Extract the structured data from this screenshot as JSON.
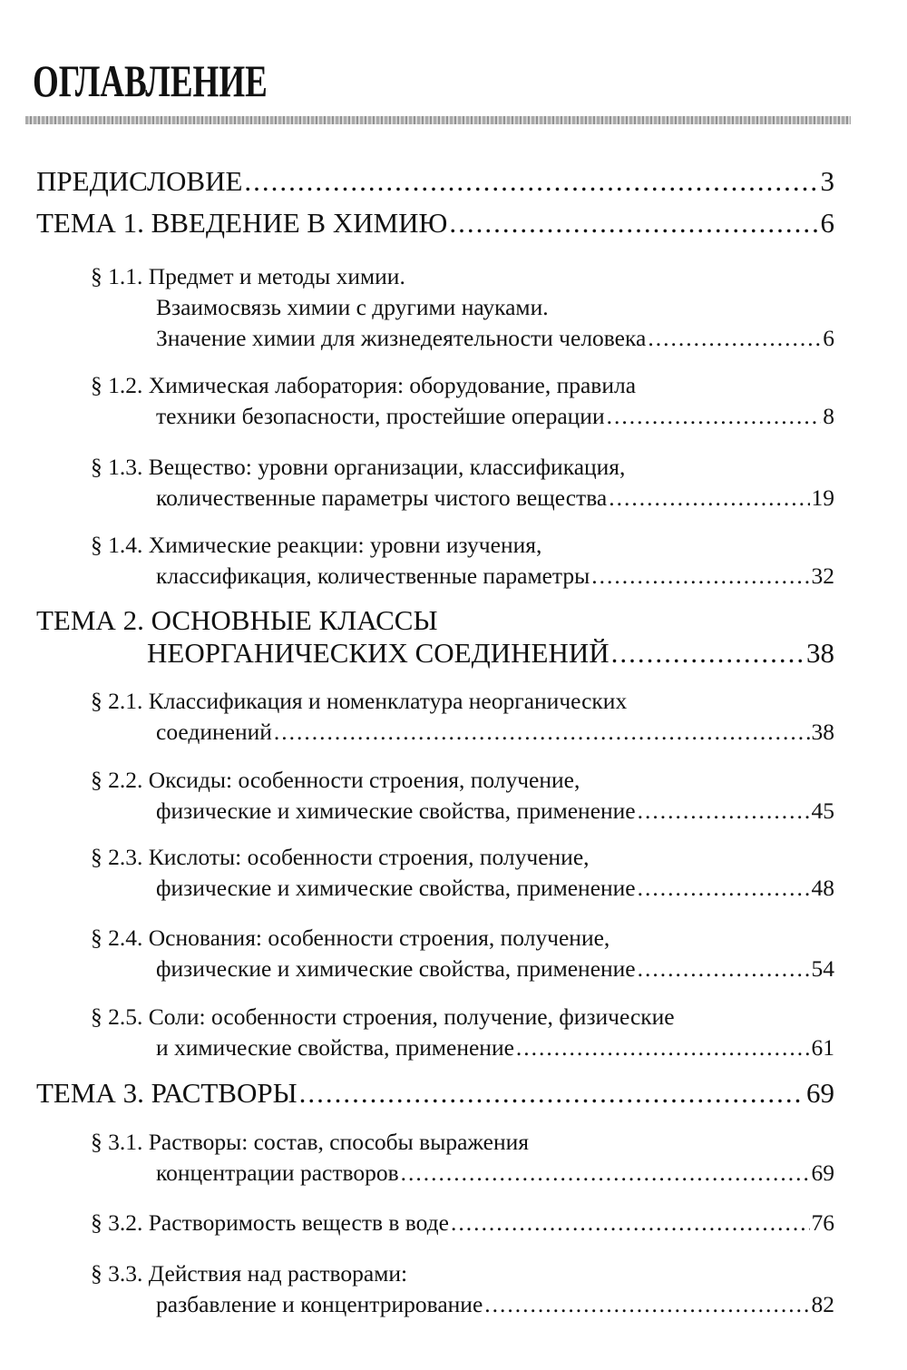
{
  "title": "ОГЛАВЛЕНИЕ",
  "entries": [
    {
      "kind": "topic",
      "lines": [
        "ПРЕДИСЛОВИЕ"
      ],
      "page": "3"
    },
    {
      "kind": "topic",
      "lines": [
        "ТЕМА 1. ВВЕДЕНИЕ В ХИМИЮ"
      ],
      "page": "6"
    },
    {
      "kind": "sec",
      "lines": [
        "§ 1.1. Предмет и методы химии.",
        "Взаимосвязь химии с другими науками.",
        "Значение химии для жизнедеятельности человека"
      ],
      "page": "6"
    },
    {
      "kind": "sec",
      "lines": [
        "§ 1.2. Химическая лаборатория: оборудование, правила",
        "техники безопасности, простейшие операции"
      ],
      "page": "8"
    },
    {
      "kind": "sec",
      "lines": [
        "§ 1.3. Вещество: уровни организации, классификация,",
        "количественные параметры чистого вещества"
      ],
      "page": "19"
    },
    {
      "kind": "sec",
      "lines": [
        "§ 1.4. Химические реакции: уровни изучения,",
        "классификация, количественные параметры"
      ],
      "page": "32"
    },
    {
      "kind": "topic",
      "lines": [
        "ТЕМА 2. ОСНОВНЫЕ КЛАССЫ",
        "НЕОРГАНИЧЕСКИХ СОЕДИНЕНИЙ"
      ],
      "page": "38"
    },
    {
      "kind": "sec",
      "lines": [
        "§ 2.1. Классификация и номенклатура неорганических",
        "соединений"
      ],
      "page": "38"
    },
    {
      "kind": "sec",
      "lines": [
        "§ 2.2. Оксиды: особенности строения, получение,",
        "физические и химические свойства, применение"
      ],
      "page": "45"
    },
    {
      "kind": "sec",
      "lines": [
        "§ 2.3. Кислоты: особенности строения, получение,",
        "физические и химические свойства, применение"
      ],
      "page": "48"
    },
    {
      "kind": "sec",
      "lines": [
        "§ 2.4. Основания: особенности строения, получение,",
        "физические и химические свойства, применение"
      ],
      "page": "54"
    },
    {
      "kind": "sec",
      "lines": [
        "§ 2.5. Соли: особенности строения, получение, физические",
        "и химические свойства, применение"
      ],
      "page": "61"
    },
    {
      "kind": "topic",
      "lines": [
        "ТЕМА 3. РАСТВОРЫ"
      ],
      "page": "69"
    },
    {
      "kind": "sec",
      "lines": [
        "§ 3.1. Растворы: состав, способы выражения",
        "концентрации растворов"
      ],
      "page": "69"
    },
    {
      "kind": "sec",
      "lines": [
        "§ 3.2. Растворимость веществ в воде"
      ],
      "page": "76"
    },
    {
      "kind": "sec",
      "lines": [
        "§ 3.3. Действия над растворами:",
        "разбавление и концентрирование"
      ],
      "page": "82"
    }
  ]
}
